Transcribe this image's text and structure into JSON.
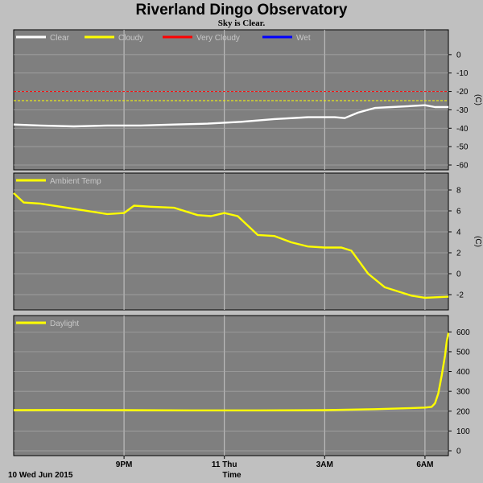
{
  "title": "Riverland Dingo Observatory",
  "subtitle": "Sky is Clear.",
  "xlabel": "Time",
  "date_label": "10 Wed Jun 2015",
  "x_ticks": [
    "9PM",
    "11 Thu",
    "3AM",
    "6AM"
  ],
  "chart_data": [
    {
      "type": "line",
      "x_range_hours": [
        17.7,
        30.7
      ],
      "x_ticks_hours": [
        21,
        24,
        27,
        30
      ],
      "ylim": [
        -60,
        10
      ],
      "yticks": [
        0,
        -10,
        -20,
        -30,
        -40,
        -50,
        -60
      ],
      "ylabel": "(C)",
      "legend": [
        "Clear",
        "Cloudy",
        "Very Cloudy",
        "Wet"
      ],
      "legend_colors": [
        "#ffffff",
        "#ffff00",
        "#ff0000",
        "#0000ff"
      ],
      "thresholds": [
        {
          "value": -20,
          "color": "#ff0000"
        },
        {
          "value": -25,
          "color": "#ffff00"
        }
      ],
      "series": [
        {
          "name": "Clear",
          "color": "#ffffff",
          "x": [
            17.7,
            18.5,
            19.5,
            20.5,
            21.5,
            22.5,
            23.5,
            24.5,
            25.5,
            26.5,
            27.3,
            27.6,
            28.0,
            28.5,
            29.0,
            29.5,
            30.0,
            30.3,
            30.7
          ],
          "y": [
            -38,
            -38.5,
            -39,
            -38.5,
            -38.5,
            -38,
            -37.5,
            -36.5,
            -35,
            -34,
            -34,
            -34.5,
            -31.5,
            -29,
            -28.5,
            -28,
            -27.5,
            -28.5,
            -28.5
          ]
        }
      ]
    },
    {
      "type": "line",
      "x_range_hours": [
        17.7,
        30.7
      ],
      "ylim": [
        -3,
        9
      ],
      "yticks": [
        8,
        6,
        4,
        2,
        0,
        -2
      ],
      "ylabel": "(C)",
      "legend": [
        "Ambient Temp"
      ],
      "legend_colors": [
        "#ffff00"
      ],
      "series": [
        {
          "name": "Ambient Temp",
          "color": "#ffff00",
          "x": [
            17.7,
            18.0,
            18.5,
            19.5,
            20.5,
            21.0,
            21.3,
            21.8,
            22.5,
            23.2,
            23.6,
            24.0,
            24.4,
            25.0,
            25.5,
            26.0,
            26.5,
            27.0,
            27.5,
            27.8,
            28.3,
            28.8,
            29.3,
            29.6,
            30.0,
            30.7
          ],
          "y": [
            7.7,
            6.8,
            6.7,
            6.2,
            5.7,
            5.8,
            6.5,
            6.4,
            6.3,
            5.6,
            5.5,
            5.8,
            5.5,
            3.7,
            3.6,
            3.0,
            2.6,
            2.5,
            2.5,
            2.2,
            0.0,
            -1.3,
            -1.8,
            -2.1,
            -2.3,
            -2.2
          ]
        }
      ]
    },
    {
      "type": "line",
      "x_range_hours": [
        17.7,
        30.7
      ],
      "ylim": [
        0,
        650
      ],
      "yticks": [
        600,
        500,
        400,
        300,
        200,
        100,
        0
      ],
      "ylabel": "",
      "legend": [
        "Daylight"
      ],
      "legend_colors": [
        "#ffff00"
      ],
      "series": [
        {
          "name": "Daylight",
          "color": "#ffff00",
          "x": [
            17.7,
            19.0,
            21.0,
            23.0,
            25.0,
            27.0,
            28.5,
            29.5,
            30.0,
            30.2,
            30.3,
            30.4,
            30.5,
            30.6,
            30.65,
            30.7
          ],
          "y": [
            205,
            206,
            205,
            204,
            204,
            205,
            210,
            215,
            218,
            222,
            240,
            290,
            380,
            480,
            550,
            595
          ]
        }
      ]
    }
  ]
}
